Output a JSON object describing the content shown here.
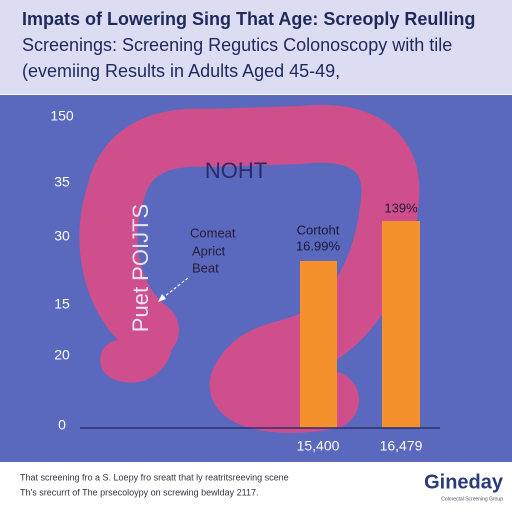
{
  "header": {
    "lines": [
      "Impats of Lowering Sing That Age: Screoply Reulling",
      "Screenings: Screening Regutics Colonoscopy with tile",
      "(evemiing Results in Adults Aged 45-49,"
    ]
  },
  "axis": {
    "labels": [
      "150",
      "35",
      "30",
      "15",
      "20",
      "0"
    ]
  },
  "illustration": {
    "label": "NOHT",
    "vertical_label": "Puet POIJTS",
    "callout": [
      "Comeat",
      "Aprict",
      "Beat"
    ]
  },
  "bars": [
    {
      "top_labels": [
        "Cortoht",
        "16.99%"
      ],
      "bottom_label": "15,400"
    },
    {
      "top_labels": [
        "139%"
      ],
      "bottom_label": "16,479"
    }
  ],
  "footer": {
    "lines": [
      "That screening fro a S. Loepy fro sreatt that ly reatritsreeving scene",
      "Th's srecurrt of The prsecoloypy on screwing bewlday 2117."
    ],
    "logo": "Gineday",
    "logo_sub": "Colorectal Screening Group"
  }
}
